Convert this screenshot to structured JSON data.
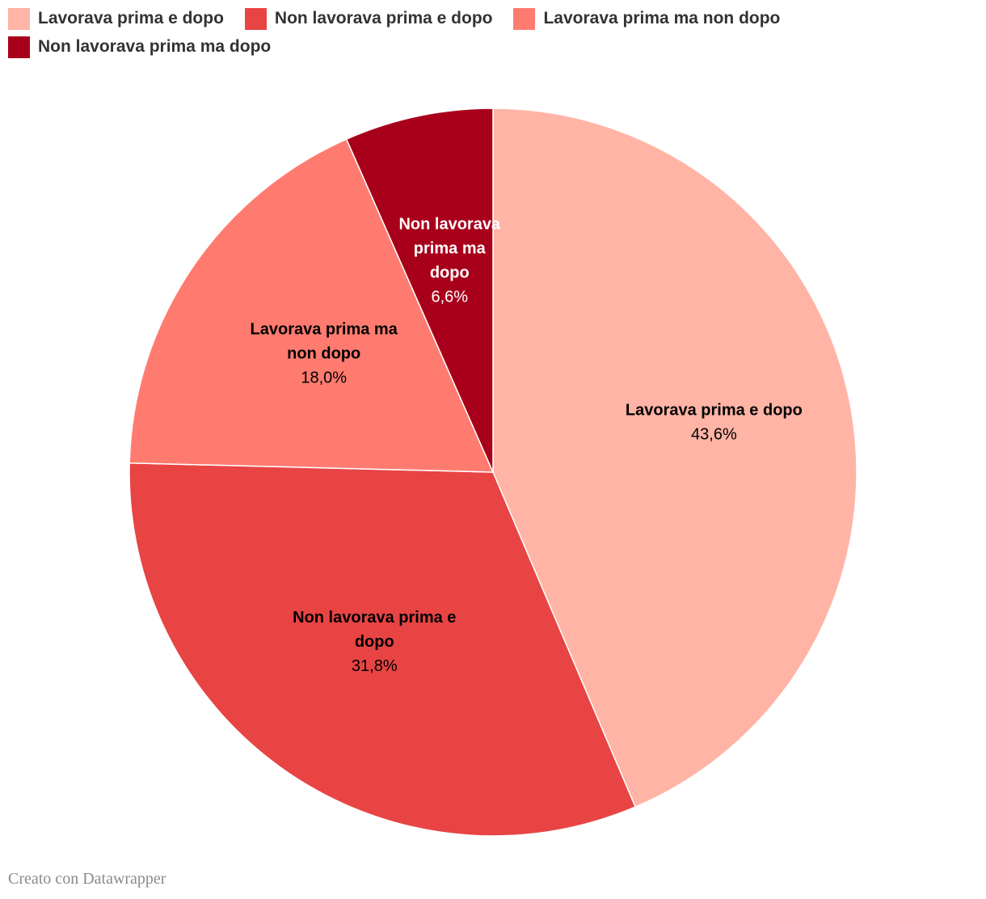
{
  "chart_data": {
    "type": "pie",
    "title": "",
    "slices": [
      {
        "label": "Lavorava prima e dopo",
        "value": 43.6,
        "display": "43,6%",
        "label_lines": [
          "Lavorava prima e dopo"
        ],
        "color": "#ffb4a6",
        "text_color": "#000000"
      },
      {
        "label": "Non lavorava prima e dopo",
        "value": 31.8,
        "display": "31,8%",
        "label_lines": [
          "Non lavorava prima e",
          "dopo"
        ],
        "color": "#e84444",
        "text_color": "#000000"
      },
      {
        "label": "Lavorava prima ma non dopo",
        "value": 18.0,
        "display": "18,0%",
        "label_lines": [
          "Lavorava prima ma",
          "non dopo"
        ],
        "color": "#ff7b70",
        "text_color": "#000000"
      },
      {
        "label": "Non lavorava prima ma dopo",
        "value": 6.6,
        "display": "6,6%",
        "label_lines": [
          "Non lavorava",
          "prima ma",
          "dopo"
        ],
        "color": "#a8001b",
        "text_color": "#ffffff"
      }
    ],
    "legend": {
      "placement": "top-left",
      "entries": [
        "Lavorava prima e dopo",
        "Non lavorava prima e dopo",
        "Lavorava prima ma non dopo",
        "Non lavorava prima ma dopo"
      ]
    }
  },
  "credit": "Creato con Datawrapper"
}
